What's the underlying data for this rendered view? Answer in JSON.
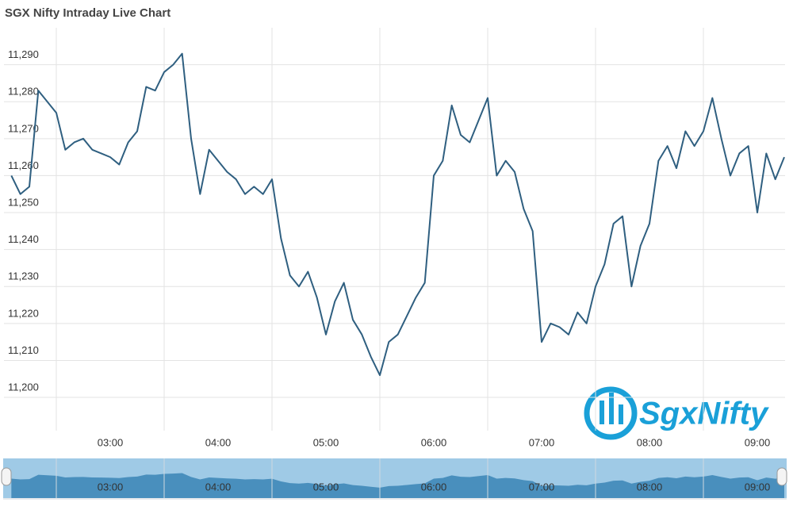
{
  "chart_data": {
    "type": "line",
    "title": "SGX Nifty Intraday Live Chart",
    "logo": "SgxNifty",
    "x": [
      "02:05",
      "02:10",
      "02:15",
      "02:20",
      "02:25",
      "02:30",
      "02:35",
      "02:40",
      "02:45",
      "02:50",
      "02:55",
      "03:00",
      "03:05",
      "03:10",
      "03:15",
      "03:20",
      "03:25",
      "03:30",
      "03:35",
      "03:40",
      "03:45",
      "03:50",
      "03:55",
      "04:00",
      "04:05",
      "04:10",
      "04:15",
      "04:20",
      "04:25",
      "04:30",
      "04:35",
      "04:40",
      "04:45",
      "04:50",
      "04:55",
      "05:00",
      "05:05",
      "05:10",
      "05:15",
      "05:20",
      "05:25",
      "05:30",
      "05:35",
      "05:40",
      "05:45",
      "05:50",
      "05:55",
      "06:00",
      "06:05",
      "06:10",
      "06:15",
      "06:20",
      "06:25",
      "06:30",
      "06:35",
      "06:40",
      "06:45",
      "06:50",
      "06:55",
      "07:00",
      "07:05",
      "07:10",
      "07:15",
      "07:20",
      "07:25",
      "07:30",
      "07:35",
      "07:40",
      "07:45",
      "07:50",
      "07:55",
      "08:00",
      "08:05",
      "08:10",
      "08:15",
      "08:20",
      "08:25",
      "08:30",
      "08:35",
      "08:40",
      "08:45",
      "08:50",
      "08:55",
      "09:00",
      "09:05",
      "09:10",
      "09:15"
    ],
    "series": [
      {
        "name": "SGX Nifty",
        "color": "#2f5f80",
        "values": [
          11260,
          11255,
          11257,
          11283,
          11280,
          11277,
          11267,
          11269,
          11270,
          11267,
          11266,
          11265,
          11263,
          11269,
          11272,
          11284,
          11283,
          11288,
          11290,
          11293,
          11270,
          11255,
          11267,
          11264,
          11261,
          11259,
          11255,
          11257,
          11255,
          11259,
          11243,
          11233,
          11230,
          11234,
          11227,
          11217,
          11226,
          11231,
          11221,
          11217,
          11211,
          11206,
          11215,
          11217,
          11222,
          11227,
          11231,
          11260,
          11264,
          11279,
          11271,
          11269,
          11275,
          11281,
          11260,
          11264,
          11261,
          11251,
          11245,
          11215,
          11220,
          11219,
          11217,
          11223,
          11220,
          11230,
          11236,
          11247,
          11249,
          11230,
          11241,
          11247,
          11264,
          11268,
          11262,
          11272,
          11268,
          11272,
          11281,
          11270,
          11260,
          11266,
          11268,
          11250,
          11266,
          11259,
          11265
        ]
      }
    ],
    "ylim": [
      11191,
      11300
    ],
    "yticks": [
      {
        "value": 11200,
        "label": "11,200"
      },
      {
        "value": 11210,
        "label": "11,210"
      },
      {
        "value": 11220,
        "label": "11,220"
      },
      {
        "value": 11230,
        "label": "11,230"
      },
      {
        "value": 11240,
        "label": "11,240"
      },
      {
        "value": 11250,
        "label": "11,250"
      },
      {
        "value": 11260,
        "label": "11,260"
      },
      {
        "value": 11270,
        "label": "11,270"
      },
      {
        "value": 11280,
        "label": "11,280"
      },
      {
        "value": 11290,
        "label": "11,290"
      }
    ],
    "xticks": [
      "03:00",
      "04:00",
      "05:00",
      "06:00",
      "07:00",
      "08:00",
      "09:00"
    ],
    "grid": true
  }
}
